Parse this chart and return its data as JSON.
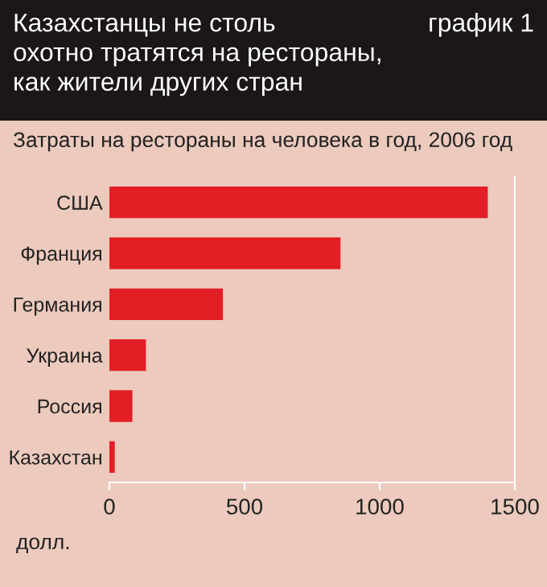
{
  "chart_data": {
    "type": "bar",
    "orientation": "horizontal",
    "title": "Казахстанцы не столь\nохотно тратятся на рестораны,\nкак жители других стран",
    "subtitle": "Затраты на рестораны на человека в год, 2006 год",
    "annotations": [
      "график 1"
    ],
    "xlabel": "долл.",
    "categories": [
      "США",
      "Франция",
      "Германия",
      "Украина",
      "Россия",
      "Казахстан"
    ],
    "values": [
      1400,
      855,
      420,
      135,
      85,
      20
    ],
    "color": "#e31e24",
    "xlim": [
      0,
      1500
    ],
    "xticks": [
      0,
      500,
      1000,
      1500
    ],
    "grid": false
  }
}
